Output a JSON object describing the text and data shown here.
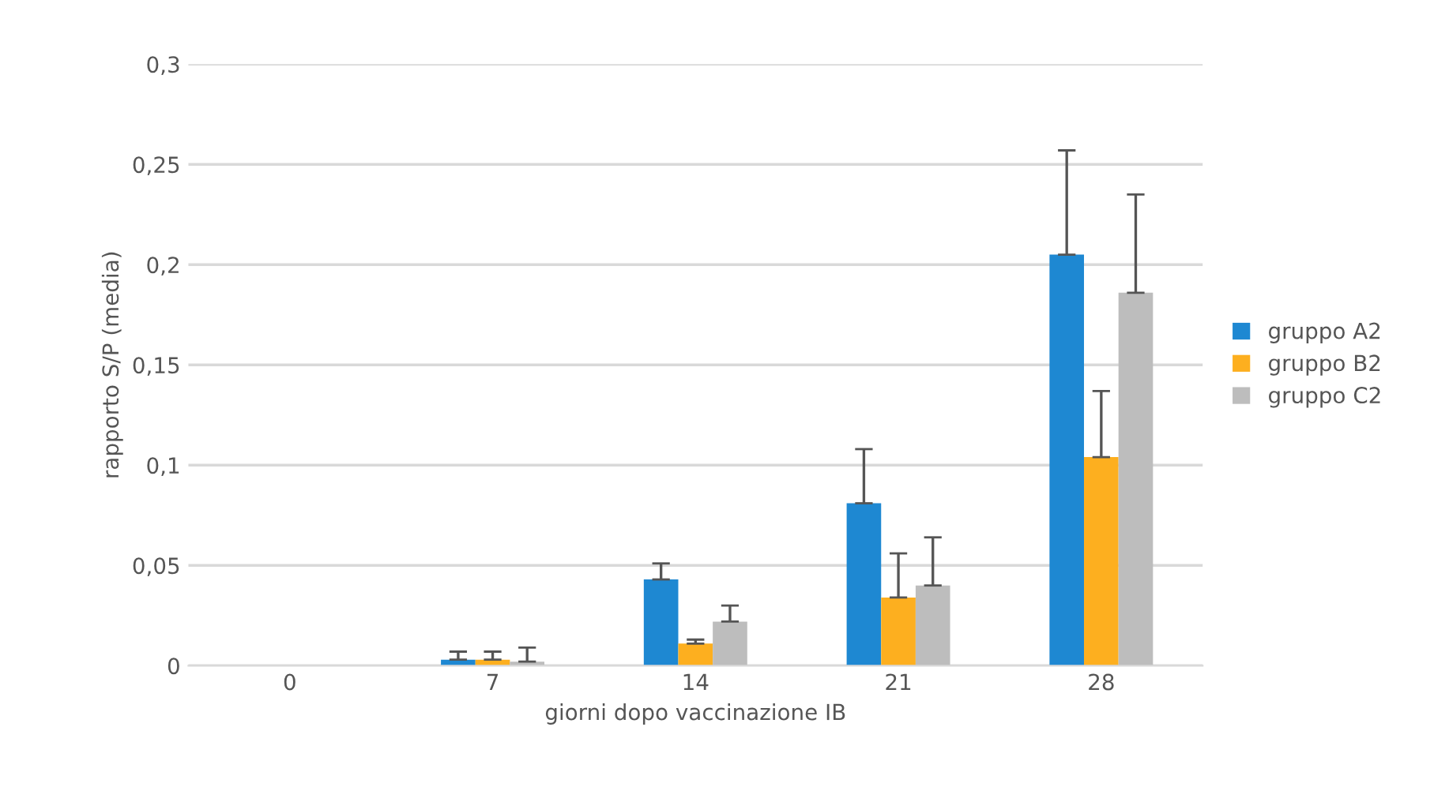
{
  "chart_data": {
    "type": "bar",
    "xlabel": "giorni dopo vaccinazione IB",
    "ylabel": "rapporto S/P (media)",
    "categories": [
      "0",
      "7",
      "14",
      "21",
      "28"
    ],
    "series": [
      {
        "name": "gruppo A2",
        "color": "#1e88d2",
        "values": [
          0,
          0.003,
          0.043,
          0.081,
          0.205
        ],
        "errors": [
          null,
          [
            0.003,
            0.007
          ],
          [
            0.043,
            0.051
          ],
          [
            0.081,
            0.108
          ],
          [
            0.205,
            0.257
          ]
        ]
      },
      {
        "name": "gruppo B2",
        "color": "#fdaf1f",
        "values": [
          0,
          0.003,
          0.011,
          0.034,
          0.104
        ],
        "errors": [
          null,
          [
            0.003,
            0.007
          ],
          [
            0.011,
            0.013
          ],
          [
            0.034,
            0.056
          ],
          [
            0.104,
            0.137
          ]
        ]
      },
      {
        "name": "gruppo C2",
        "color": "#bdbdbd",
        "values": [
          0,
          0.002,
          0.022,
          0.04,
          0.186
        ],
        "errors": [
          null,
          [
            0.002,
            0.009
          ],
          [
            0.022,
            0.03
          ],
          [
            0.04,
            0.064
          ],
          [
            0.186,
            0.235
          ]
        ]
      }
    ],
    "ylim": [
      0,
      0.3
    ],
    "yticks": [
      {
        "value": 0,
        "label": "0"
      },
      {
        "value": 0.05,
        "label": "0,05"
      },
      {
        "value": 0.1,
        "label": "0,1"
      },
      {
        "value": 0.15,
        "label": "0,15"
      },
      {
        "value": 0.2,
        "label": "0,2"
      },
      {
        "value": 0.25,
        "label": "0,25"
      },
      {
        "value": 0.3,
        "label": "0,3"
      }
    ],
    "grid": "y",
    "legend": "right"
  }
}
